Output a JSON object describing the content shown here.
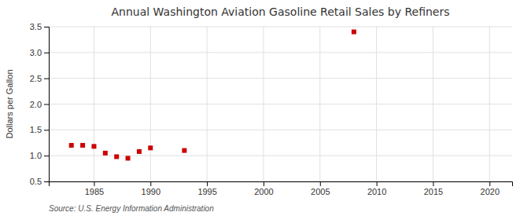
{
  "chart_data": {
    "type": "scatter",
    "title": "Annual Washington Aviation Gasoline Retail Sales by Refiners",
    "y_label": "Dollars per Gallon",
    "annotations": [
      "Source: U.S. Energy Information Administration"
    ],
    "x": [
      1983,
      1984,
      1985,
      1986,
      1987,
      1988,
      1989,
      1990,
      1993,
      2008
    ],
    "values": [
      1.2,
      1.2,
      1.18,
      1.05,
      0.98,
      0.95,
      1.08,
      1.15,
      1.1,
      3.4
    ],
    "color": "#cc0000",
    "marker": "square",
    "xlim": [
      1981,
      2022
    ],
    "ylim": [
      0.5,
      3.5
    ],
    "xticks": [
      1985,
      1990,
      1995,
      2000,
      2005,
      2010,
      2015,
      2020
    ],
    "yticks": [
      0.5,
      {
        "value": 1.0,
        "label": "1.0"
      },
      1.5,
      {
        "value": 2.0,
        "label": "2.0"
      },
      2.5,
      {
        "value": 3.0,
        "label": "3.0"
      },
      3.5
    ],
    "grid": true
  }
}
